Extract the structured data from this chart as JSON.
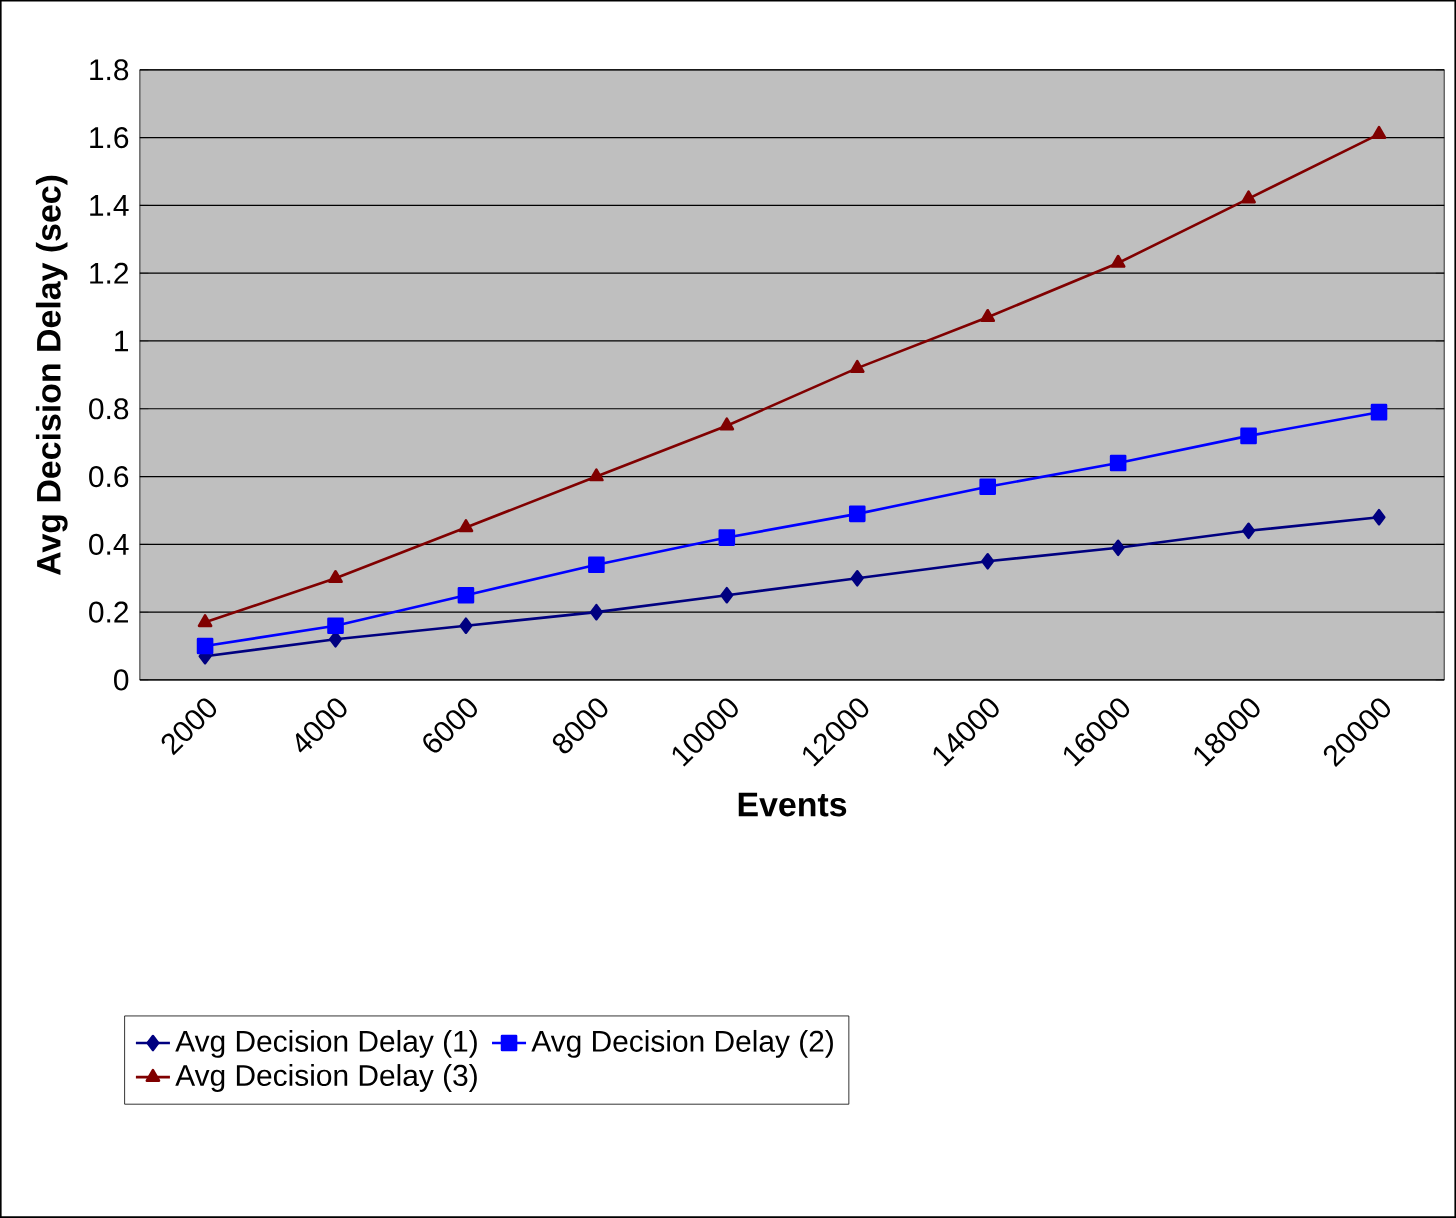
{
  "chart_data": {
    "type": "line",
    "xlabel": "Events",
    "ylabel": "Avg Decision Delay (sec)",
    "categories": [
      "2000",
      "4000",
      "6000",
      "8000",
      "10000",
      "12000",
      "14000",
      "16000",
      "18000",
      "20000"
    ],
    "ylim": [
      0,
      1.8
    ],
    "yticks": [
      0,
      0.2,
      0.4,
      0.6,
      0.8,
      1,
      1.2,
      1.4,
      1.6,
      1.8
    ],
    "grid": "y",
    "legend": "bottom",
    "series": [
      {
        "name": "Avg Decision Delay (1)",
        "color": "#000080",
        "marker": "diamond",
        "values": [
          0.07,
          0.12,
          0.16,
          0.2,
          0.25,
          0.3,
          0.35,
          0.39,
          0.44,
          0.48
        ]
      },
      {
        "name": "Avg Decision Delay (2)",
        "color": "#0000ff",
        "marker": "square",
        "values": [
          0.1,
          0.16,
          0.25,
          0.34,
          0.42,
          0.49,
          0.57,
          0.64,
          0.72,
          0.79
        ]
      },
      {
        "name": "Avg Decision Delay (3)",
        "color": "#800000",
        "marker": "triangle",
        "values": [
          0.17,
          0.3,
          0.45,
          0.6,
          0.75,
          0.92,
          1.07,
          1.23,
          1.42,
          1.61
        ]
      }
    ]
  }
}
